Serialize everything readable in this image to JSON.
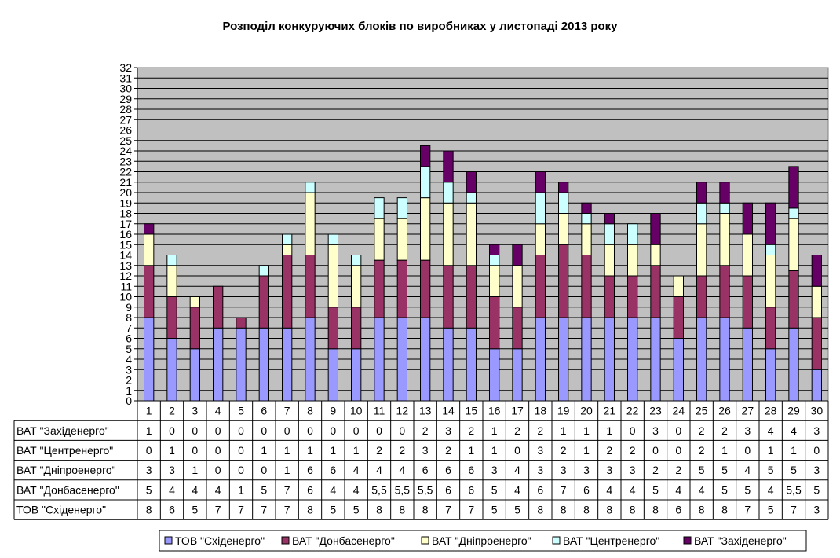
{
  "chart_data": {
    "type": "bar",
    "stacked": true,
    "title": "Розподіл конкуруючих блоків по виробниках у листопаді 2013 року",
    "xlabel": "",
    "ylabel": "",
    "ylim": [
      0,
      32
    ],
    "y_ticks": [
      0,
      1,
      2,
      3,
      4,
      5,
      6,
      7,
      8,
      9,
      10,
      11,
      12,
      13,
      14,
      15,
      16,
      17,
      18,
      19,
      20,
      21,
      22,
      23,
      24,
      25,
      26,
      27,
      28,
      29,
      30,
      31,
      32
    ],
    "grid": true,
    "legend_position": "bottom",
    "categories": [
      "1",
      "2",
      "3",
      "4",
      "5",
      "6",
      "7",
      "8",
      "9",
      "10",
      "11",
      "12",
      "13",
      "14",
      "15",
      "16",
      "17",
      "18",
      "19",
      "20",
      "21",
      "22",
      "23",
      "24",
      "25",
      "26",
      "27",
      "28",
      "29",
      "30"
    ],
    "series": [
      {
        "name": "ТОВ \"Східенерго\"",
        "color": "#9999ff",
        "values": [
          8,
          6,
          5,
          7,
          7,
          7,
          7,
          8,
          5,
          5,
          8,
          8,
          8,
          7,
          7,
          5,
          5,
          8,
          8,
          8,
          8,
          8,
          8,
          6,
          8,
          8,
          7,
          5,
          7,
          3
        ],
        "labels": [
          "8",
          "6",
          "5",
          "7",
          "7",
          "7",
          "7",
          "8",
          "5",
          "5",
          "8",
          "8",
          "8",
          "7",
          "7",
          "5",
          "5",
          "8",
          "8",
          "8",
          "8",
          "8",
          "8",
          "6",
          "8",
          "8",
          "7",
          "5",
          "7",
          "3"
        ]
      },
      {
        "name": "ВАТ \"Донбасенерго\"",
        "color": "#993366",
        "values": [
          5,
          4,
          4,
          4,
          1,
          5,
          7,
          6,
          4,
          4,
          5.5,
          5.5,
          5.5,
          6,
          6,
          5,
          4,
          6,
          7,
          6,
          4,
          4,
          5,
          4,
          4,
          5,
          5,
          4,
          5.5,
          5
        ],
        "labels": [
          "5",
          "4",
          "4",
          "4",
          "1",
          "5",
          "7",
          "6",
          "4",
          "4",
          "5,5",
          "5,5",
          "5,5",
          "6",
          "6",
          "5",
          "4",
          "6",
          "7",
          "6",
          "4",
          "4",
          "5",
          "4",
          "4",
          "5",
          "5",
          "4",
          "5,5",
          "5"
        ]
      },
      {
        "name": "ВАТ \"Дніпроенерго\"",
        "color": "#ffffcc",
        "values": [
          3,
          3,
          1,
          0,
          0,
          0,
          1,
          6,
          6,
          4,
          4,
          4,
          6,
          6,
          6,
          3,
          4,
          3,
          3,
          3,
          3,
          3,
          2,
          2,
          5,
          5,
          4,
          5,
          5,
          3
        ],
        "labels": [
          "3",
          "3",
          "1",
          "0",
          "0",
          "0",
          "1",
          "6",
          "6",
          "4",
          "4",
          "4",
          "6",
          "6",
          "6",
          "3",
          "4",
          "3",
          "3",
          "3",
          "3",
          "3",
          "2",
          "2",
          "5",
          "5",
          "4",
          "5",
          "5",
          "3"
        ]
      },
      {
        "name": "ВАТ \"Центренерго\"",
        "color": "#ccffff",
        "values": [
          0,
          1,
          0,
          0,
          0,
          1,
          1,
          1,
          1,
          1,
          2,
          2,
          3,
          2,
          1,
          1,
          0,
          3,
          2,
          1,
          2,
          2,
          0,
          0,
          2,
          1,
          0,
          1,
          1,
          0
        ],
        "labels": [
          "0",
          "1",
          "0",
          "0",
          "0",
          "1",
          "1",
          "1",
          "1",
          "1",
          "2",
          "2",
          "3",
          "2",
          "1",
          "1",
          "0",
          "3",
          "2",
          "1",
          "2",
          "2",
          "0",
          "0",
          "2",
          "1",
          "0",
          "1",
          "1",
          "0"
        ]
      },
      {
        "name": "ВАТ \"Західенерго\"",
        "color": "#660066",
        "values": [
          1,
          0,
          0,
          0,
          0,
          0,
          0,
          0,
          0,
          0,
          0,
          0,
          2,
          3,
          2,
          1,
          2,
          2,
          1,
          1,
          1,
          0,
          3,
          0,
          2,
          2,
          3,
          4,
          4,
          3
        ],
        "labels": [
          "1",
          "0",
          "0",
          "0",
          "0",
          "0",
          "0",
          "0",
          "0",
          "0",
          "0",
          "0",
          "2",
          "3",
          "2",
          "1",
          "2",
          "2",
          "1",
          "1",
          "1",
          "0",
          "3",
          "0",
          "2",
          "2",
          "3",
          "4",
          "4",
          "3"
        ]
      }
    ],
    "table_row_order": [
      4,
      3,
      2,
      1,
      0
    ]
  }
}
